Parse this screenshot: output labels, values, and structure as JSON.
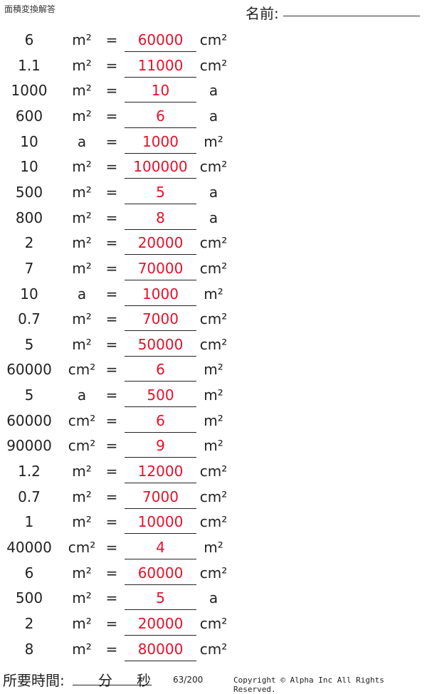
{
  "header": {
    "title": "面積変換解答",
    "name_label": "名前:"
  },
  "rows": [
    {
      "q": "6",
      "from": "m²",
      "answer": "60000",
      "to": "cm²"
    },
    {
      "q": "1.1",
      "from": "m²",
      "answer": "11000",
      "to": "cm²"
    },
    {
      "q": "1000",
      "from": "m²",
      "answer": "10",
      "to": "a"
    },
    {
      "q": "600",
      "from": "m²",
      "answer": "6",
      "to": "a"
    },
    {
      "q": "10",
      "from": "a",
      "answer": "1000",
      "to": "m²"
    },
    {
      "q": "10",
      "from": "m²",
      "answer": "100000",
      "to": "cm²"
    },
    {
      "q": "500",
      "from": "m²",
      "answer": "5",
      "to": "a"
    },
    {
      "q": "800",
      "from": "m²",
      "answer": "8",
      "to": "a"
    },
    {
      "q": "2",
      "from": "m²",
      "answer": "20000",
      "to": "cm²"
    },
    {
      "q": "7",
      "from": "m²",
      "answer": "70000",
      "to": "cm²"
    },
    {
      "q": "10",
      "from": "a",
      "answer": "1000",
      "to": "m²"
    },
    {
      "q": "0.7",
      "from": "m²",
      "answer": "7000",
      "to": "cm²"
    },
    {
      "q": "5",
      "from": "m²",
      "answer": "50000",
      "to": "cm²"
    },
    {
      "q": "60000",
      "from": "cm²",
      "answer": "6",
      "to": "m²"
    },
    {
      "q": "5",
      "from": "a",
      "answer": "500",
      "to": "m²"
    },
    {
      "q": "60000",
      "from": "cm²",
      "answer": "6",
      "to": "m²"
    },
    {
      "q": "90000",
      "from": "cm²",
      "answer": "9",
      "to": "m²"
    },
    {
      "q": "1.2",
      "from": "m²",
      "answer": "12000",
      "to": "cm²"
    },
    {
      "q": "0.7",
      "from": "m²",
      "answer": "7000",
      "to": "cm²"
    },
    {
      "q": "1",
      "from": "m²",
      "answer": "10000",
      "to": "cm²"
    },
    {
      "q": "40000",
      "from": "cm²",
      "answer": "4",
      "to": "m²"
    },
    {
      "q": "6",
      "from": "m²",
      "answer": "60000",
      "to": "cm²"
    },
    {
      "q": "500",
      "from": "m²",
      "answer": "5",
      "to": "a"
    },
    {
      "q": "2",
      "from": "m²",
      "answer": "20000",
      "to": "cm²"
    },
    {
      "q": "8",
      "from": "m²",
      "answer": "80000",
      "to": "cm²"
    }
  ],
  "equals": "=",
  "footer": {
    "time_label": "所要時間:",
    "minutes": "分",
    "seconds": "秒",
    "page": "63/200",
    "copyright": "Copyright © Alpha Inc All Rights Reserved."
  },
  "colors": {
    "answer": "#e8102a"
  }
}
